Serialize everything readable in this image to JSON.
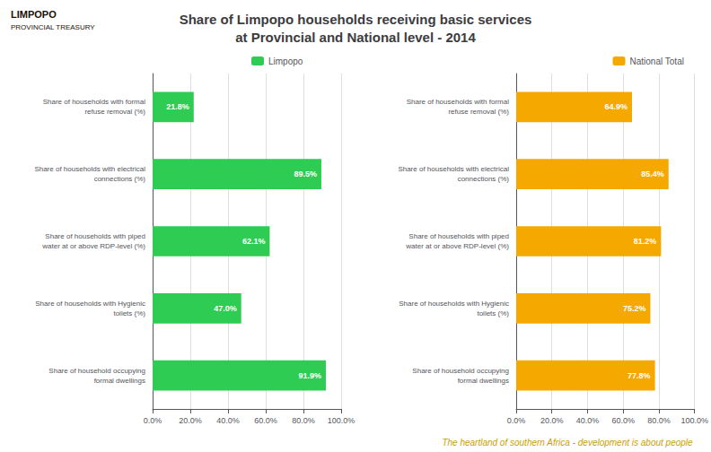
{
  "chart_data": [
    {
      "type": "bar",
      "title": "Share of Limpopo households receiving basic services\nat Provincial and National level - 2014",
      "annotations": [
        "LIMPOPO",
        "PROVINCIAL TREASURY",
        "The heartland of southern Africa - development is about people"
      ],
      "orientation": "horizontal",
      "categories": [
        "Share of households with formal\nrefuse removal (%)",
        "Share of households with electrical\nconnections (%)",
        "Share of households with piped\nwater at or above RDP-level (%)",
        "Share of households with Hygienic\ntoilets (%)",
        "Share of household occupying\nformal dwellings"
      ],
      "series": [
        {
          "name": "Limpopo",
          "color": "#2ECC52",
          "values": [
            21.8,
            89.5,
            62.1,
            47.0,
            91.9
          ],
          "value_labels": [
            "21.8%",
            "89.5%",
            "62.1%",
            "47.0%",
            "91.9%"
          ]
        }
      ],
      "xlim": [
        0,
        100
      ],
      "xticks": [
        {
          "value": 0,
          "label": "0.0%"
        },
        {
          "value": 20,
          "label": "20.0%"
        },
        {
          "value": 40,
          "label": "40.0%"
        },
        {
          "value": 60,
          "label": "60.0%"
        },
        {
          "value": 80,
          "label": "80.0%"
        },
        {
          "value": 100,
          "label": "100.0%"
        }
      ],
      "grid": true,
      "data_labels": true,
      "legend": "top"
    },
    {
      "type": "bar",
      "orientation": "horizontal",
      "categories": [
        "Share of households with formal\nrefuse removal (%)",
        "Share of households with electrical\nconnections (%)",
        "Share of households with piped\nwater at or above RDP-level (%)",
        "Share of households with Hygienic\ntoilets (%)",
        "Share of household occupying\nformal dwellings"
      ],
      "series": [
        {
          "name": "National Total",
          "color": "#F5A800",
          "values": [
            64.9,
            85.4,
            81.2,
            75.2,
            77.8
          ],
          "value_labels": [
            "64.9%",
            "85.4%",
            "81.2%",
            "75.2%",
            "77.8%"
          ]
        }
      ],
      "xlim": [
        0,
        100
      ],
      "xticks": [
        {
          "value": 0,
          "label": "0.0%"
        },
        {
          "value": 20,
          "label": "20.0%"
        },
        {
          "value": 40,
          "label": "40.0%"
        },
        {
          "value": 60,
          "label": "60.0%"
        },
        {
          "value": 80,
          "label": "80.0%"
        },
        {
          "value": 100,
          "label": "100.0%"
        }
      ],
      "grid": true,
      "data_labels": true,
      "legend": "top"
    }
  ]
}
